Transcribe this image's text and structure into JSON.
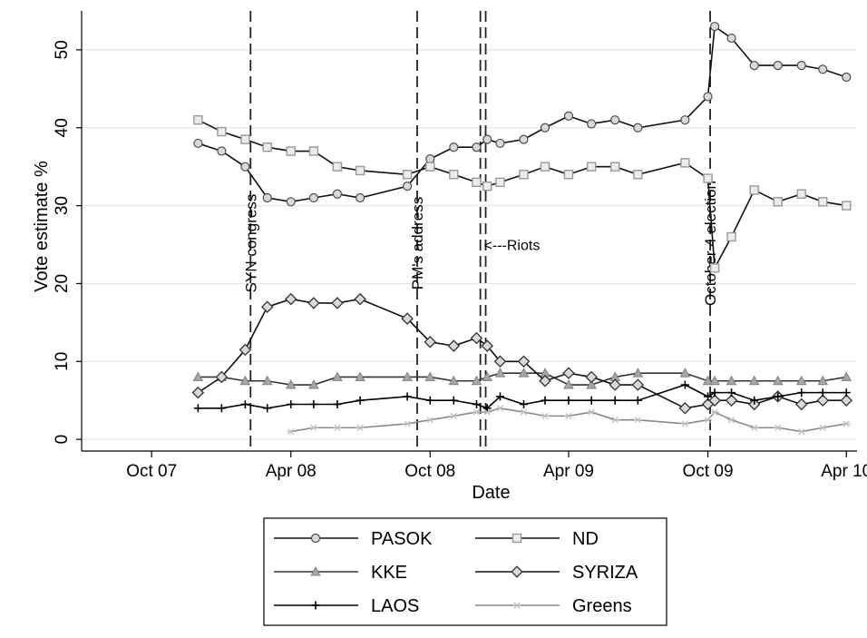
{
  "chart_data": {
    "type": "line",
    "xlabel": "Date",
    "ylabel": "Vote estimate %",
    "xlim": [
      "2007-07-01",
      "2010-04-15"
    ],
    "ylim": [
      -1.5,
      55
    ],
    "x_ticks": [
      {
        "date": "2007-10-01",
        "label": "Oct 07"
      },
      {
        "date": "2008-04-01",
        "label": "Apr 08"
      },
      {
        "date": "2008-10-01",
        "label": "Oct 08"
      },
      {
        "date": "2009-04-01",
        "label": "Apr 09"
      },
      {
        "date": "2009-10-01",
        "label": "Oct 09"
      },
      {
        "date": "2010-04-01",
        "label": "Apr 10"
      }
    ],
    "y_ticks": [
      0,
      10,
      20,
      30,
      40,
      50
    ],
    "grid": "horizontal",
    "legend_position": "bottom",
    "events": [
      {
        "date": "2008-02-08",
        "label": "SYN congress"
      },
      {
        "date": "2008-09-14",
        "label": "PM's address"
      },
      {
        "date": "2008-12-06",
        "label": ""
      },
      {
        "date": "2008-12-13",
        "label": ""
      },
      {
        "date": "2009-10-04",
        "label": "October 4 election"
      }
    ],
    "annotations": [
      {
        "date": "2008-12-13",
        "y": 25,
        "text": "<---Riots"
      }
    ],
    "series": [
      {
        "name": "PASOK",
        "marker": "circle",
        "x": [
          "2007-12-01",
          "2008-01-01",
          "2008-02-01",
          "2008-03-01",
          "2008-04-01",
          "2008-05-01",
          "2008-06-01",
          "2008-07-01",
          "2008-09-01",
          "2008-10-01",
          "2008-11-01",
          "2008-12-01",
          "2008-12-15",
          "2009-01-01",
          "2009-02-01",
          "2009-03-01",
          "2009-04-01",
          "2009-05-01",
          "2009-06-01",
          "2009-07-01",
          "2009-09-01",
          "2009-10-01",
          "2009-10-10",
          "2009-11-01",
          "2009-12-01",
          "2010-01-01",
          "2010-02-01",
          "2010-03-01",
          "2010-04-01"
        ],
        "y": [
          38,
          37,
          35,
          31,
          30.5,
          31,
          31.5,
          31,
          32.5,
          36,
          37.5,
          37.5,
          38.5,
          38,
          38.5,
          40,
          41.5,
          40.5,
          41,
          40,
          41,
          44,
          53,
          51.5,
          48,
          48,
          48,
          47.5,
          46.5
        ]
      },
      {
        "name": "ND",
        "marker": "square",
        "x": [
          "2007-12-01",
          "2008-01-01",
          "2008-02-01",
          "2008-03-01",
          "2008-04-01",
          "2008-05-01",
          "2008-06-01",
          "2008-07-01",
          "2008-09-01",
          "2008-10-01",
          "2008-11-01",
          "2008-12-01",
          "2008-12-15",
          "2009-01-01",
          "2009-02-01",
          "2009-03-01",
          "2009-04-01",
          "2009-05-01",
          "2009-06-01",
          "2009-07-01",
          "2009-09-01",
          "2009-10-01",
          "2009-10-10",
          "2009-11-01",
          "2009-12-01",
          "2010-01-01",
          "2010-02-01",
          "2010-03-01",
          "2010-04-01"
        ],
        "y": [
          41,
          39.5,
          38.5,
          37.5,
          37,
          37,
          35,
          34.5,
          34,
          35,
          34,
          33,
          32.5,
          33,
          34,
          35,
          34,
          35,
          35,
          34,
          35.5,
          33.5,
          22,
          26,
          32,
          30.5,
          31.5,
          30.5,
          30
        ]
      },
      {
        "name": "KKE",
        "marker": "triangle",
        "x": [
          "2007-12-01",
          "2008-01-01",
          "2008-02-01",
          "2008-03-01",
          "2008-04-01",
          "2008-05-01",
          "2008-06-01",
          "2008-07-01",
          "2008-09-01",
          "2008-10-01",
          "2008-11-01",
          "2008-12-01",
          "2008-12-15",
          "2009-01-01",
          "2009-02-01",
          "2009-03-01",
          "2009-04-01",
          "2009-05-01",
          "2009-06-01",
          "2009-07-01",
          "2009-09-01",
          "2009-10-01",
          "2009-10-10",
          "2009-11-01",
          "2009-12-01",
          "2010-01-01",
          "2010-02-01",
          "2010-03-01",
          "2010-04-01"
        ],
        "y": [
          8,
          8,
          7.5,
          7.5,
          7,
          7,
          8,
          8,
          8,
          8,
          7.5,
          7.5,
          8,
          8.5,
          8.5,
          8.5,
          7,
          7,
          8,
          8.5,
          8.5,
          7.5,
          7.5,
          7.5,
          7.5,
          7.5,
          7.5,
          7.5,
          8
        ]
      },
      {
        "name": "SYRIZA",
        "marker": "diamond",
        "x": [
          "2007-12-01",
          "2008-01-01",
          "2008-02-01",
          "2008-03-01",
          "2008-04-01",
          "2008-05-01",
          "2008-06-01",
          "2008-07-01",
          "2008-09-01",
          "2008-10-01",
          "2008-11-01",
          "2008-12-01",
          "2008-12-15",
          "2009-01-01",
          "2009-02-01",
          "2009-03-01",
          "2009-04-01",
          "2009-05-01",
          "2009-06-01",
          "2009-07-01",
          "2009-09-01",
          "2009-10-01",
          "2009-10-10",
          "2009-11-01",
          "2009-12-01",
          "2010-01-01",
          "2010-02-01",
          "2010-03-01",
          "2010-04-01"
        ],
        "y": [
          6,
          8,
          11.5,
          17,
          18,
          17.5,
          17.5,
          18,
          15.5,
          12.5,
          12,
          13,
          12,
          10,
          10,
          7.5,
          8.5,
          8,
          7,
          7,
          4,
          4.5,
          5,
          5,
          4.5,
          5.5,
          4.5,
          5,
          5
        ]
      },
      {
        "name": "LAOS",
        "marker": "plus",
        "x": [
          "2007-12-01",
          "2008-01-01",
          "2008-02-01",
          "2008-03-01",
          "2008-04-01",
          "2008-05-01",
          "2008-06-01",
          "2008-07-01",
          "2008-09-01",
          "2008-10-01",
          "2008-11-01",
          "2008-12-01",
          "2008-12-15",
          "2009-01-01",
          "2009-02-01",
          "2009-03-01",
          "2009-04-01",
          "2009-05-01",
          "2009-06-01",
          "2009-07-01",
          "2009-09-01",
          "2009-10-01",
          "2009-10-10",
          "2009-11-01",
          "2009-12-01",
          "2010-01-01",
          "2010-02-01",
          "2010-03-01",
          "2010-04-01"
        ],
        "y": [
          4,
          4,
          4.5,
          4,
          4.5,
          4.5,
          4.5,
          5,
          5.5,
          5,
          5,
          4.5,
          4,
          5.5,
          4.5,
          5,
          5,
          5,
          5,
          5,
          7,
          5.5,
          6,
          6,
          5,
          5.5,
          6,
          6,
          6
        ]
      },
      {
        "name": "Greens",
        "marker": "star",
        "x": [
          "2008-04-01",
          "2008-05-01",
          "2008-06-01",
          "2008-07-01",
          "2008-09-01",
          "2008-10-01",
          "2008-11-01",
          "2008-12-01",
          "2008-12-15",
          "2009-01-01",
          "2009-02-01",
          "2009-03-01",
          "2009-04-01",
          "2009-05-01",
          "2009-06-01",
          "2009-07-01",
          "2009-09-01",
          "2009-10-01",
          "2009-10-10",
          "2009-11-01",
          "2009-12-01",
          "2010-01-01",
          "2010-02-01",
          "2010-03-01",
          "2010-04-01"
        ],
        "y": [
          1,
          1.5,
          1.5,
          1.5,
          2,
          2.5,
          3,
          3.5,
          3.5,
          4,
          3.5,
          3,
          3,
          3.5,
          2.5,
          2.5,
          2,
          2.5,
          3.5,
          2.5,
          1.5,
          1.5,
          1,
          1.5,
          2
        ]
      }
    ]
  }
}
